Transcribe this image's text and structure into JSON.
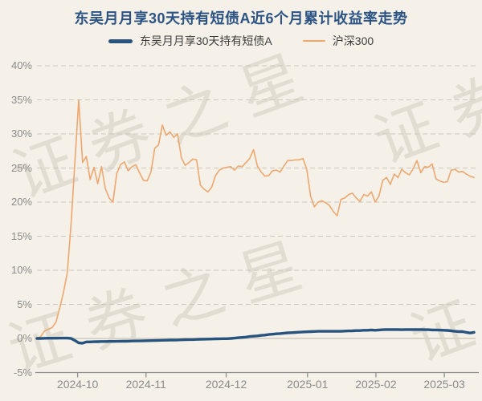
{
  "title": "东吴月月享30天持有短债A近6个月累计收益率走势",
  "watermark": {
    "text": "证券之星"
  },
  "legend": {
    "items": [
      {
        "label": "东吴月月享30天持有短债A",
        "color": "#27537e",
        "style": "thick"
      },
      {
        "label": "沪深300",
        "color": "#eda76f",
        "style": "thin"
      }
    ]
  },
  "colors": {
    "background": "#f5f1e8",
    "title": "#2b5384",
    "fund_line": "#27537e",
    "index_line": "#eda76f",
    "grid_dashed": "#cbc7be",
    "grid_zero": "#d8d4ca",
    "axis": "#8f8f8f",
    "tick_label": "#8a8a8a"
  },
  "chart_data": {
    "type": "line",
    "title": "东吴月月享30天持有短债A近6个月累计收益率走势",
    "legend_position": "top",
    "grid": "horizontal-dashed",
    "y_axis": {
      "unit": "%",
      "min": -5,
      "max": 40,
      "tick_values": [
        40,
        35,
        30,
        25,
        20,
        15,
        10,
        5,
        0,
        -5
      ],
      "tick_labels": [
        "40%",
        "35%",
        "30%",
        "25%",
        "20%",
        "15%",
        "10%",
        "5%",
        "0%",
        "-5%"
      ],
      "zero_line_value": 0,
      "axis_line_value": -5
    },
    "x_axis": {
      "tick_labels": [
        "2024-10",
        "2024-11",
        "2024-12",
        "2025-01",
        "2025-02",
        "2025-03"
      ],
      "tick_days": [
        10.7,
        28.7,
        49.8,
        71.2,
        89.2,
        107.2
      ]
    },
    "series": [
      {
        "name": "沪深300",
        "color": "#eda76f",
        "width": 1.6,
        "values": [
          0.0,
          0.3,
          1.1,
          1.35,
          1.6,
          2.4,
          4.5,
          6.8,
          9.7,
          17.0,
          26.0,
          35.0,
          25.8,
          26.7,
          23.3,
          25.1,
          22.7,
          25.2,
          22.0,
          20.6,
          20.0,
          24.2,
          25.5,
          25.9,
          24.6,
          25.2,
          25.5,
          24.3,
          23.2,
          23.1,
          24.4,
          27.9,
          28.4,
          31.3,
          29.8,
          30.3,
          29.5,
          30.0,
          26.5,
          25.4,
          25.8,
          26.3,
          26.2,
          22.5,
          21.9,
          21.5,
          22.2,
          23.9,
          24.7,
          25.0,
          25.1,
          25.2,
          24.7,
          25.3,
          25.2,
          25.8,
          26.4,
          27.7,
          25.3,
          24.4,
          23.8,
          23.9,
          24.6,
          24.7,
          24.4,
          25.3,
          26.1,
          26.1,
          26.2,
          26.2,
          26.4,
          24.8,
          20.9,
          19.3,
          20.0,
          20.2,
          19.9,
          19.5,
          18.6,
          18.0,
          20.4,
          20.6,
          21.1,
          21.3,
          20.6,
          20.1,
          21.1,
          20.9,
          21.5,
          20.0,
          20.9,
          23.2,
          23.6,
          22.6,
          24.1,
          23.6,
          24.8,
          24.3,
          24.0,
          24.9,
          26.1,
          24.3,
          25.2,
          25.1,
          25.6,
          23.4,
          23.1,
          22.9,
          23.0,
          24.7,
          24.8,
          24.4,
          24.5,
          24.1,
          23.8,
          23.6
        ]
      },
      {
        "name": "东吴月月享30天持有短债A",
        "color": "#27537e",
        "width": 3.4,
        "values": [
          0.0,
          0.0,
          0.02,
          0.03,
          0.03,
          0.04,
          0.05,
          0.05,
          0.05,
          0.0,
          -0.3,
          -0.65,
          -0.7,
          -0.5,
          -0.5,
          -0.48,
          -0.47,
          -0.45,
          -0.45,
          -0.44,
          -0.43,
          -0.42,
          -0.41,
          -0.4,
          -0.4,
          -0.38,
          -0.37,
          -0.36,
          -0.34,
          -0.33,
          -0.32,
          -0.3,
          -0.28,
          -0.27,
          -0.26,
          -0.24,
          -0.23,
          -0.22,
          -0.2,
          -0.18,
          -0.17,
          -0.16,
          -0.14,
          -0.12,
          -0.1,
          -0.09,
          -0.08,
          -0.06,
          -0.05,
          -0.04,
          -0.03,
          0.0,
          0.05,
          0.1,
          0.15,
          0.2,
          0.28,
          0.33,
          0.38,
          0.45,
          0.5,
          0.58,
          0.62,
          0.68,
          0.72,
          0.78,
          0.82,
          0.85,
          0.88,
          0.92,
          0.95,
          0.98,
          1.0,
          1.02,
          1.05,
          1.05,
          1.05,
          1.05,
          1.05,
          1.05,
          1.05,
          1.08,
          1.1,
          1.12,
          1.15,
          1.15,
          1.2,
          1.2,
          1.25,
          1.2,
          1.25,
          1.28,
          1.3,
          1.3,
          1.3,
          1.3,
          1.28,
          1.3,
          1.3,
          1.3,
          1.3,
          1.3,
          1.28,
          1.28,
          1.25,
          1.25,
          1.22,
          1.2,
          1.18,
          1.12,
          1.05,
          1.0,
          1.0,
          0.9,
          0.8,
          0.9
        ]
      }
    ]
  }
}
